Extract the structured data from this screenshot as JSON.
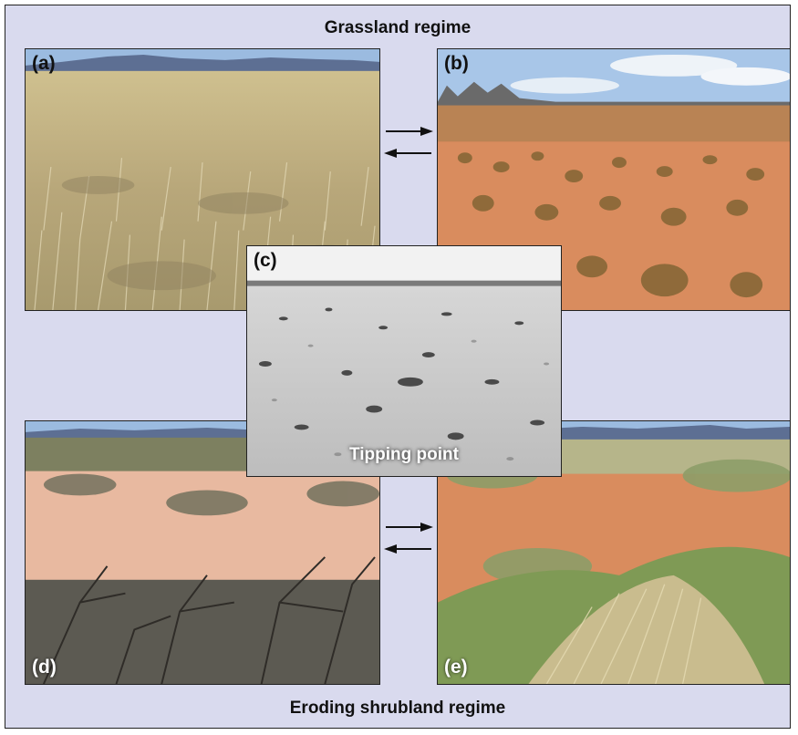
{
  "headings": {
    "top": "Grassland regime",
    "bottom": "Eroding shrubland regime"
  },
  "panels": {
    "a": {
      "label": "(a)"
    },
    "b": {
      "label": "(b)"
    },
    "c": {
      "label": "(c)",
      "caption": "Tipping point"
    },
    "d": {
      "label": "(d)"
    },
    "e": {
      "label": "(e)"
    }
  },
  "colors": {
    "background": "#d9daee",
    "sky": "#9bbbe0",
    "mountains": "#5d6f93",
    "grass_dry": "#c9b98e",
    "soil_red": "#d98c5e",
    "shrub_dark": "#4f4a43",
    "grass_green": "#7f9a55"
  }
}
